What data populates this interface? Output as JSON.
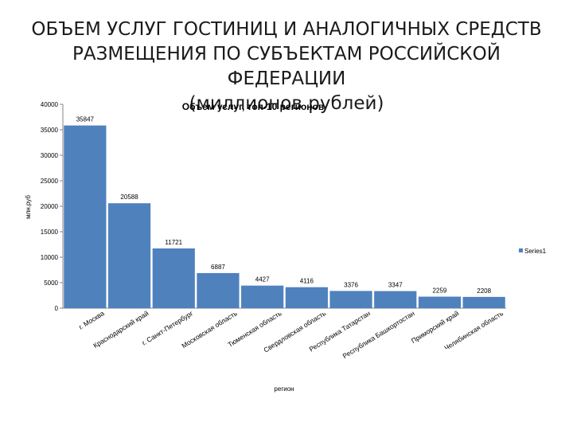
{
  "slide": {
    "title_lines": [
      "ОБЪЕМ УСЛУГ ГОСТИНИЦ И АНАЛОГИЧНЫХ СРЕДСТВ",
      "РАЗМЕЩЕНИЯ ПО СУБЪЕКТАМ РОССИЙСКОЙ ФЕДЕРАЦИИ",
      "(миллионов рублей)"
    ]
  },
  "chart_data": {
    "type": "bar",
    "title": "Объем услуг, топ-10 регионов",
    "xlabel": "регион",
    "ylabel": "млн.руб",
    "ylim": [
      0,
      40000
    ],
    "yticks": [
      "0",
      "5000",
      "10000",
      "15000",
      "20000",
      "25000",
      "30000",
      "35000",
      "40000"
    ],
    "categories": [
      "г. Москва",
      "Краснодарский край",
      "г. Санкт-Петербург",
      "Московская область",
      "Тюменская область",
      "Свердловская область",
      "Республика Татарстан",
      "Республика Башкортостан",
      "Приморский край",
      "Челябинская область"
    ],
    "series": [
      {
        "name": "Series1",
        "values": [
          35847,
          20588,
          11721,
          6887,
          4427,
          4116,
          3376,
          3347,
          2259,
          2208
        ],
        "labels": [
          "35847",
          "20588",
          "11721",
          "6887",
          "4427",
          "4116",
          "3376",
          "3347",
          "2259",
          "2208"
        ],
        "color": "#4f81bd"
      }
    ],
    "legend_position": "right",
    "grid": false
  }
}
